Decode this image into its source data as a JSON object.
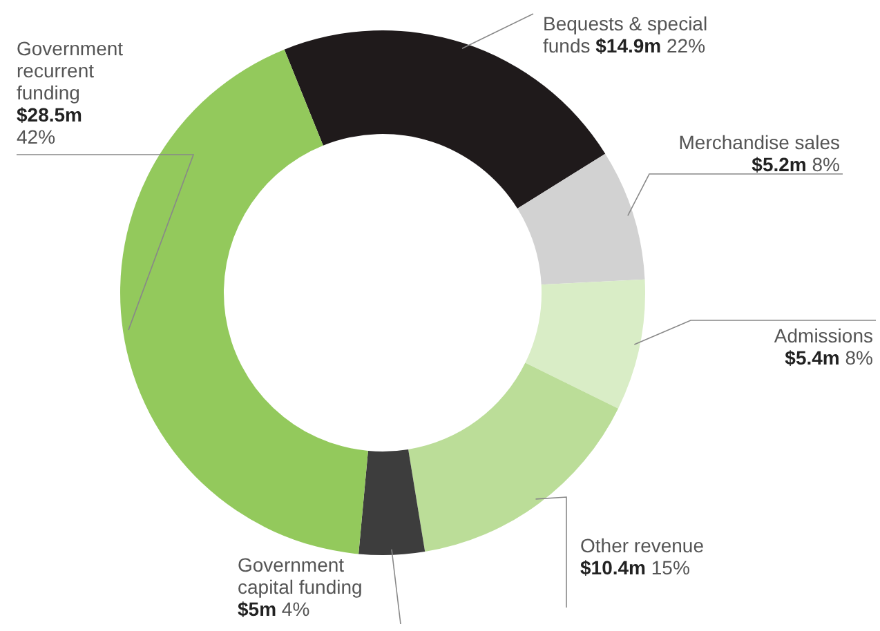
{
  "chart_data": {
    "type": "donut",
    "categories": [
      "Bequests & special funds",
      "Merchandise sales",
      "Admissions",
      "Other revenue",
      "Government capital funding",
      "Government recurrent funding"
    ],
    "values": [
      22,
      8,
      8,
      15,
      4,
      42
    ],
    "colors": [
      "#1f1a1b",
      "#d2d2d2",
      "#d9edc6",
      "#bbdd98",
      "#3d3d3d",
      "#93c95c"
    ],
    "value_labels": [
      "$14.9m 22%",
      "$5.2m 8%",
      "$5.4m 8%",
      "$10.4m 15%",
      "$5m 4%",
      "$28.5m 42%"
    ]
  }
}
